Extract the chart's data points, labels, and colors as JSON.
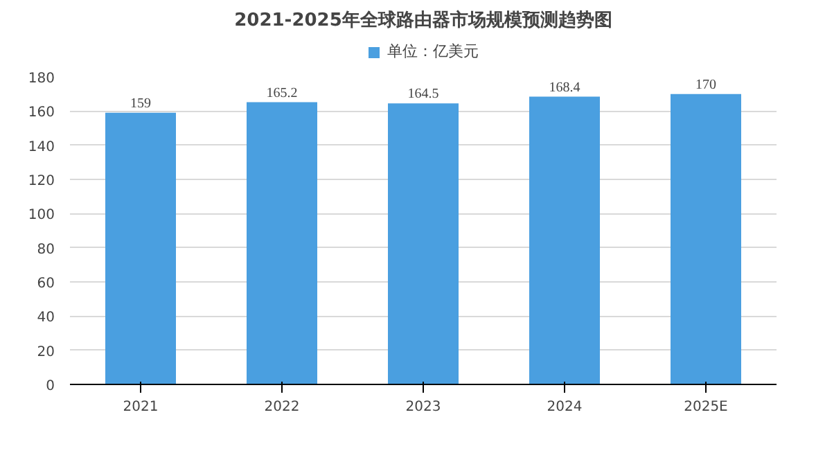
{
  "chart_data": {
    "type": "bar",
    "title": "2021-2025年全球路由器市场规模预测趋势图",
    "categories": [
      "2021",
      "2022",
      "2023",
      "2024",
      "2025E"
    ],
    "series": [
      {
        "name": "单位：亿美元",
        "color": "#4a9fe0",
        "values": [
          159,
          165.2,
          164.5,
          168.4,
          170
        ]
      }
    ],
    "ylim": [
      0,
      180
    ],
    "yticks": [
      0,
      20,
      40,
      60,
      80,
      100,
      120,
      140,
      160,
      180
    ],
    "grid": "y",
    "legend": "top",
    "data_labels": true
  }
}
